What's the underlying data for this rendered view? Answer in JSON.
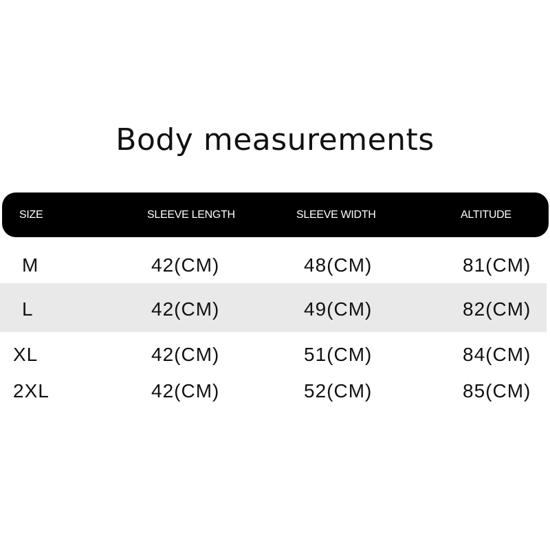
{
  "title": "Body measurements",
  "table": {
    "headers": [
      "SIZE",
      "SLEEVE LENGTH",
      "SLEEVE WIDTH",
      "ALTITUDE"
    ],
    "rows": [
      [
        "M",
        "42(CM)",
        "48(CM)",
        "81(CM)"
      ],
      [
        "L",
        "42(CM)",
        "49(CM)",
        "82(CM)"
      ],
      [
        "XL",
        "42(CM)",
        "51(CM)",
        "84(CM)"
      ],
      [
        "2XL",
        "42(CM)",
        "52(CM)",
        "85(CM)"
      ]
    ],
    "header_bg": "#000000",
    "highlight_row_bg": "#e9e9e9"
  }
}
